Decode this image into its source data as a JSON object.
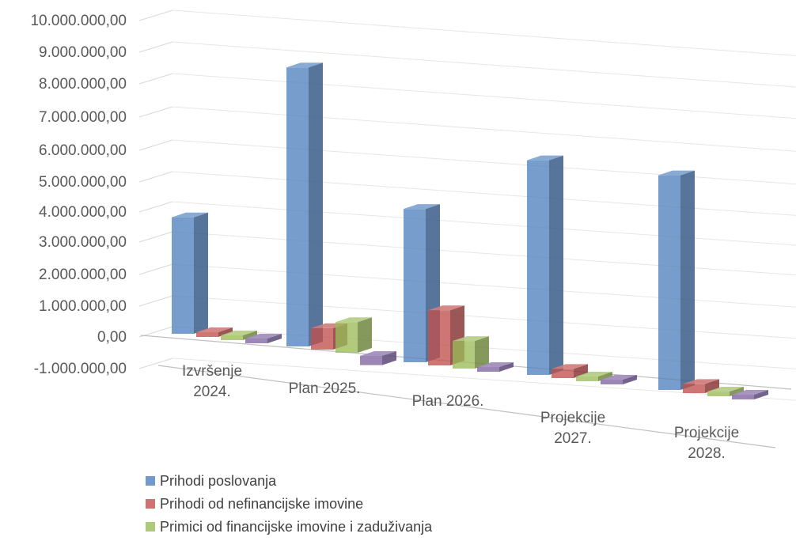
{
  "chart_data": {
    "type": "bar",
    "categories": [
      [
        "Izvršenje",
        "2024."
      ],
      [
        "Plan 2025."
      ],
      [
        "Plan 2026."
      ],
      [
        "Projekcije",
        "2027."
      ],
      [
        "Projekcije",
        "2028."
      ]
    ],
    "y_tick_labels": [
      "-1.000.000,00",
      "0,00",
      "1.000.000,00",
      "2.000.000,00",
      "3.000.000,00",
      "4.000.000,00",
      "5.000.000,00",
      "6.000.000,00",
      "7.000.000,00",
      "8.000.000,00",
      "9.000.000,00",
      "10.000.000,00"
    ],
    "ylim": [
      -1000000,
      10000000
    ],
    "grid": true,
    "legend_position": "bottom",
    "series": [
      {
        "name": "Prihodi poslovanja",
        "color": "#4f81bd",
        "values": [
          3800000,
          9100000,
          5000000,
          7000000,
          7000000
        ]
      },
      {
        "name": "Prihodi od nefinancijske imovine",
        "color": "#c0504d",
        "values": [
          30000,
          700000,
          1800000,
          300000,
          300000
        ]
      },
      {
        "name": "Primici od financijske imovine i zaduživanja",
        "color": "#9bbb59",
        "values": [
          0,
          1000000,
          900000,
          0,
          0
        ]
      },
      {
        "name": "",
        "color": "#8064a2",
        "values": [
          0,
          -300000,
          0,
          0,
          0
        ]
      }
    ]
  }
}
